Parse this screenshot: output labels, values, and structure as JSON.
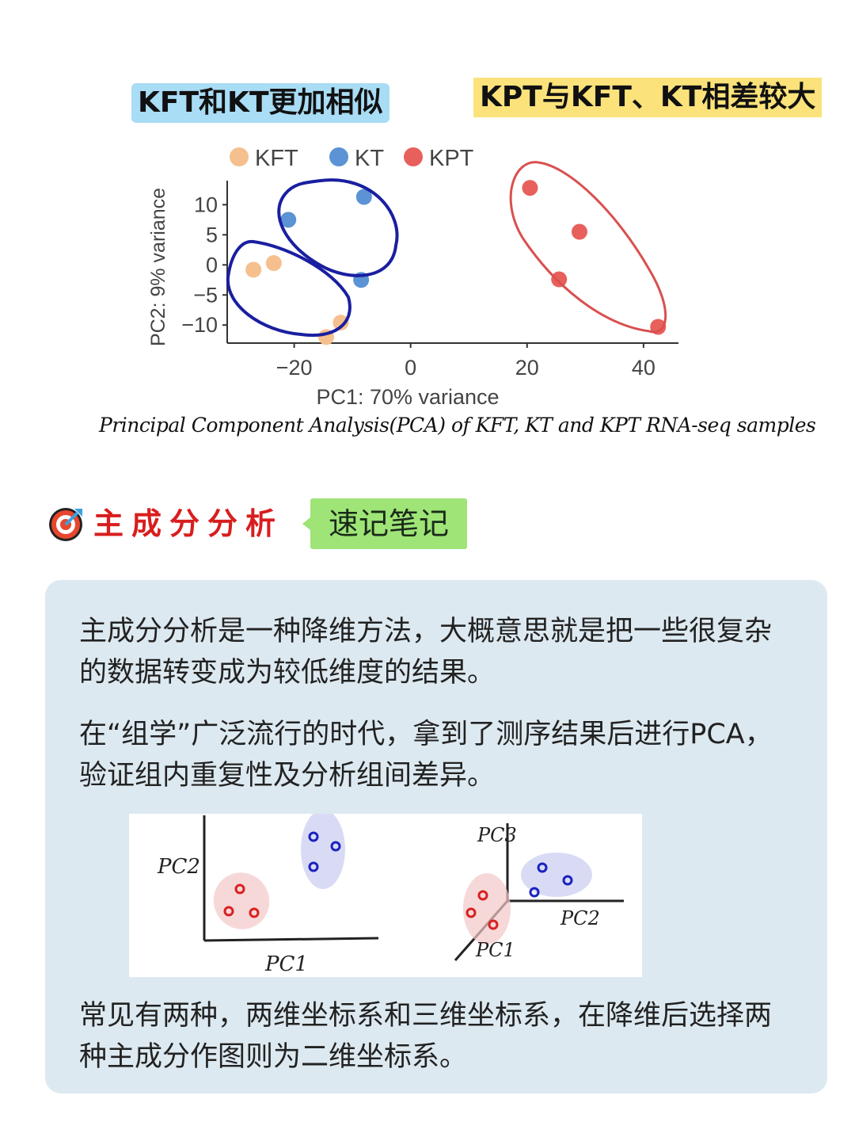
{
  "header": {
    "left_note": "KFT和KT更加相似",
    "right_note": "KPT与KFT、KT相差较大",
    "left_highlight_color": "#a9dcf5",
    "right_highlight_color": "#fbe27a"
  },
  "chart_data": {
    "type": "scatter",
    "xlabel": "PC1: 70% variance",
    "ylabel": "PC2: 9% variance",
    "xlim": [
      -31.5,
      46
    ],
    "ylim": [
      -13,
      14
    ],
    "x_ticks": [
      -20,
      0,
      20,
      40
    ],
    "y_ticks": [
      10,
      5,
      0,
      -5,
      -10
    ],
    "x_tick_labels": [
      "−20",
      "0",
      "20",
      "40"
    ],
    "y_tick_labels": [
      "10",
      "5",
      "0",
      "−5",
      "−10"
    ],
    "legend_position": "top",
    "grid": false,
    "series": [
      {
        "name": "KFT",
        "color": "#f5c08e",
        "points": [
          [
            -27,
            -0.8
          ],
          [
            -23.5,
            0.3
          ],
          [
            -12,
            -9.6
          ],
          [
            -14.5,
            -12
          ]
        ]
      },
      {
        "name": "KT",
        "color": "#5b93d4",
        "points": [
          [
            -21,
            7.5
          ],
          [
            -8,
            11.3
          ],
          [
            -8.5,
            -2.5
          ]
        ]
      },
      {
        "name": "KPT",
        "color": "#e8605c",
        "points": [
          [
            20.5,
            12.8
          ],
          [
            29,
            5.5
          ],
          [
            25.5,
            -2.4
          ],
          [
            42.5,
            -10.3
          ]
        ]
      }
    ],
    "caption": "Principal Component Analysis(PCA) of KFT, KT and KPT RNA-seq samples"
  },
  "section": {
    "title": "主成分分析",
    "tag": "速记笔记",
    "title_color": "#d81e1e",
    "tag_color": "#9ee476"
  },
  "card": {
    "para1": "主成分分析是一种降维方法，大概意思就是把一些很复杂的数据转变成为较低维度的结果。",
    "para2": "在“组学”广泛流行的时代，拿到了测序结果后进行PCA，验证组内重复性及分析组间差异。",
    "para3": "常见有两种，两维坐标系和三维坐标系，在降维后选择两种主成分作图则为二维坐标系。",
    "sketch": {
      "pc1": "PC1",
      "pc2": "PC2",
      "pc3": "PC3"
    }
  }
}
